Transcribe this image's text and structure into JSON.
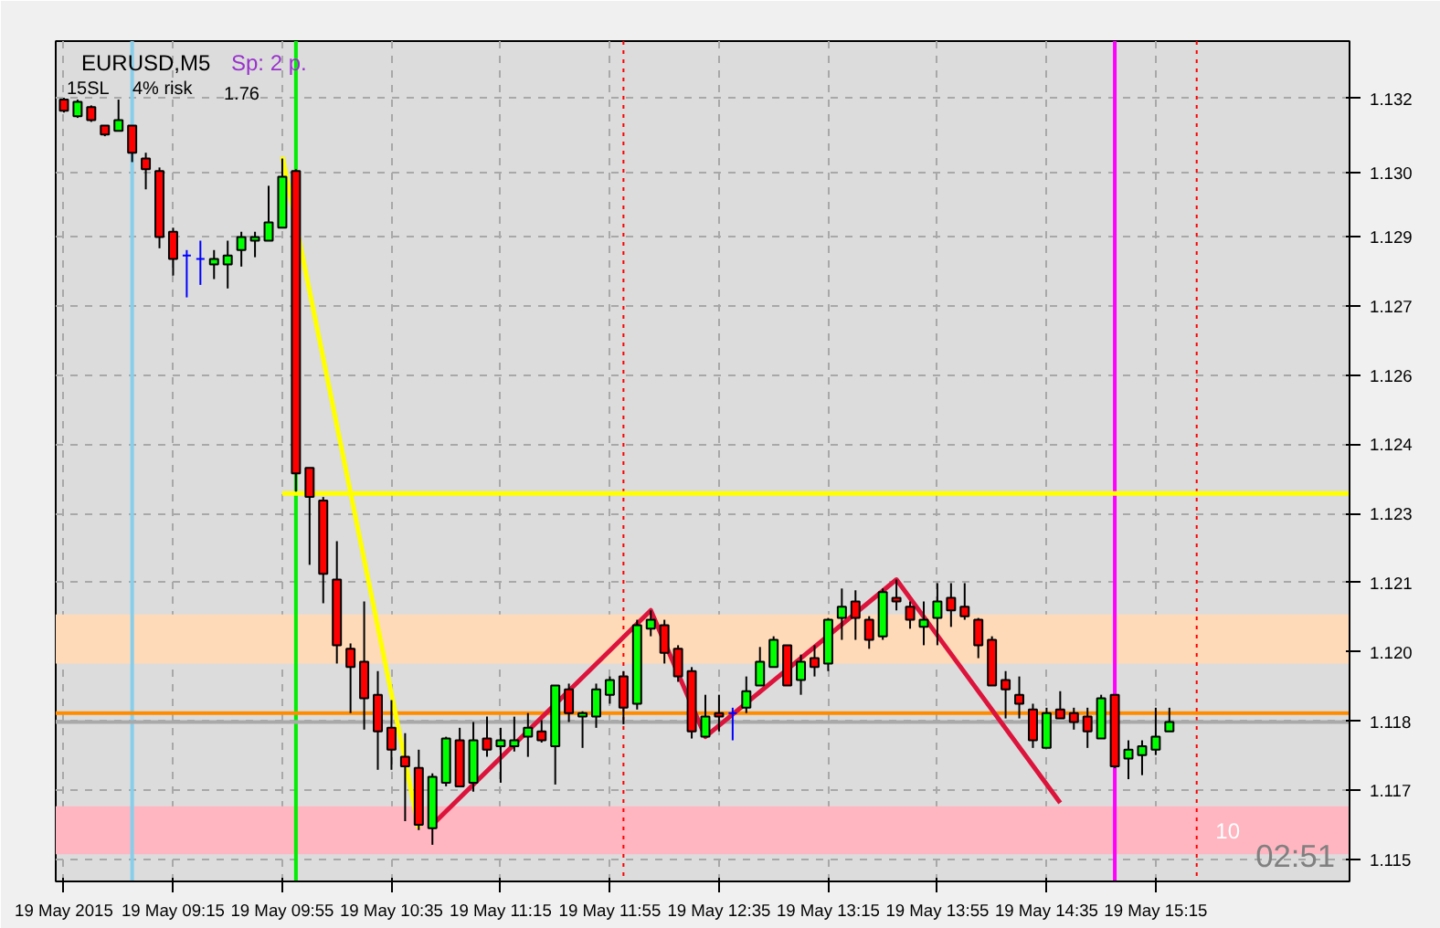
{
  "chart_data": {
    "type": "candlestick",
    "title": "EURUSD,M5",
    "x": [
      "2015-05-19T08:35",
      "2015-05-19T08:40",
      "2015-05-19T08:45",
      "2015-05-19T08:50",
      "2015-05-19T08:55",
      "2015-05-19T09:00",
      "2015-05-19T09:05",
      "2015-05-19T09:10",
      "2015-05-19T09:15",
      "2015-05-19T09:20",
      "2015-05-19T09:25",
      "2015-05-19T09:30",
      "2015-05-19T09:35",
      "2015-05-19T09:40",
      "2015-05-19T09:45",
      "2015-05-19T09:50",
      "2015-05-19T09:55",
      "2015-05-19T10:00",
      "2015-05-19T10:05",
      "2015-05-19T10:10",
      "2015-05-19T10:15",
      "2015-05-19T10:20",
      "2015-05-19T10:25",
      "2015-05-19T10:30",
      "2015-05-19T10:35",
      "2015-05-19T10:40",
      "2015-05-19T10:45",
      "2015-05-19T10:50",
      "2015-05-19T10:55",
      "2015-05-19T11:00",
      "2015-05-19T11:05",
      "2015-05-19T11:10",
      "2015-05-19T11:15",
      "2015-05-19T11:20",
      "2015-05-19T11:25",
      "2015-05-19T11:30",
      "2015-05-19T11:35",
      "2015-05-19T11:40",
      "2015-05-19T11:45",
      "2015-05-19T11:50",
      "2015-05-19T11:55",
      "2015-05-19T12:00",
      "2015-05-19T12:05",
      "2015-05-19T12:10",
      "2015-05-19T12:15",
      "2015-05-19T12:20",
      "2015-05-19T12:25",
      "2015-05-19T12:30",
      "2015-05-19T12:35",
      "2015-05-19T12:40",
      "2015-05-19T12:45",
      "2015-05-19T12:50",
      "2015-05-19T12:55",
      "2015-05-19T13:00",
      "2015-05-19T13:05",
      "2015-05-19T13:10",
      "2015-05-19T13:15",
      "2015-05-19T13:20",
      "2015-05-19T13:25",
      "2015-05-19T13:30",
      "2015-05-19T13:35",
      "2015-05-19T13:40",
      "2015-05-19T13:45",
      "2015-05-19T13:50",
      "2015-05-19T13:55",
      "2015-05-19T14:00",
      "2015-05-19T14:05",
      "2015-05-19T14:10",
      "2015-05-19T14:15",
      "2015-05-19T14:20",
      "2015-05-19T14:25",
      "2015-05-19T14:30",
      "2015-05-19T14:35",
      "2015-05-19T14:40",
      "2015-05-19T14:45",
      "2015-05-19T14:50",
      "2015-05-19T14:55",
      "2015-05-19T15:00",
      "2015-05-19T15:05",
      "2015-05-19T15:10",
      "2015-05-19T15:15",
      "2015-05-19T15:20"
    ],
    "ohlc": [
      [
        1.13212,
        1.13216,
        1.13183,
        1.13187
      ],
      [
        1.13175,
        1.13212,
        1.13171,
        1.13207
      ],
      [
        1.13195,
        1.13199,
        1.13162,
        1.13166
      ],
      [
        1.13154,
        1.13154,
        1.1313,
        1.13134
      ],
      [
        1.13142,
        1.13212,
        1.13142,
        1.13166
      ],
      [
        1.13154,
        1.13154,
        1.13072,
        1.13093
      ],
      [
        1.1308,
        1.13093,
        1.13011,
        1.13056
      ],
      [
        1.13052,
        1.1306,
        1.12879,
        1.12904
      ],
      [
        1.12916,
        1.12925,
        1.12818,
        1.12855
      ],
      [
        1.12863,
        1.12875,
        1.12769,
        1.12863
      ],
      [
        1.12855,
        1.12896,
        1.12797,
        1.12855
      ],
      [
        1.12843,
        1.12875,
        1.1281,
        1.12855
      ],
      [
        1.12843,
        1.12896,
        1.12789,
        1.12863
      ],
      [
        1.12875,
        1.12916,
        1.12838,
        1.12904
      ],
      [
        1.12896,
        1.12916,
        1.12859,
        1.12904
      ],
      [
        1.12896,
        1.13019,
        1.12896,
        1.12937
      ],
      [
        1.12925,
        1.1308,
        1.12925,
        1.13039
      ],
      [
        1.13052,
        1.13056,
        1.12334,
        1.12375
      ],
      [
        1.12387,
        1.12387,
        1.1217,
        1.12322
      ],
      [
        1.12314,
        1.12322,
        1.12084,
        1.1215
      ],
      [
        1.12137,
        1.12223,
        1.11949,
        1.1199
      ],
      [
        1.11982,
        1.11994,
        1.11838,
        1.11941
      ],
      [
        1.11953,
        1.12088,
        1.11801,
        1.11871
      ],
      [
        1.11879,
        1.11932,
        1.11711,
        1.11797
      ],
      [
        1.11805,
        1.11867,
        1.11711,
        1.11756
      ],
      [
        1.1174,
        1.11793,
        1.11596,
        1.11719
      ],
      [
        1.11715,
        1.11756,
        1.11576,
        1.11588
      ],
      [
        1.1158,
        1.11703,
        1.11543,
        1.11695
      ],
      [
        1.11682,
        1.11785,
        1.11674,
        1.11781
      ],
      [
        1.11777,
        1.11805,
        1.11674,
        1.11674
      ],
      [
        1.11682,
        1.11818,
        1.11662,
        1.11777
      ],
      [
        1.11781,
        1.1183,
        1.1174,
        1.11756
      ],
      [
        1.11764,
        1.11805,
        1.11682,
        1.11777
      ],
      [
        1.11764,
        1.1183,
        1.11752,
        1.11777
      ],
      [
        1.11785,
        1.11838,
        1.1174,
        1.11805
      ],
      [
        1.11797,
        1.11822,
        1.11772,
        1.11777
      ],
      [
        1.11764,
        1.119,
        1.11678,
        1.119
      ],
      [
        1.11891,
        1.11904,
        1.11818,
        1.11838
      ],
      [
        1.1183,
        1.11842,
        1.1176,
        1.11838
      ],
      [
        1.1183,
        1.11904,
        1.11805,
        1.11891
      ],
      [
        1.11879,
        1.1192,
        1.11859,
        1.11912
      ],
      [
        1.1192,
        1.11932,
        1.11813,
        1.1185
      ],
      [
        1.11859,
        1.12047,
        1.11846,
        1.12035
      ],
      [
        1.12027,
        1.12068,
        1.1201,
        1.12047
      ],
      [
        1.12035,
        1.12047,
        1.11949,
        1.11973
      ],
      [
        1.11982,
        1.1199,
        1.11908,
        1.1192
      ],
      [
        1.11932,
        1.11941,
        1.11781,
        1.11797
      ],
      [
        1.11785,
        1.11879,
        1.11785,
        1.1183
      ],
      [
        1.11838,
        1.11879,
        1.11797,
        1.1183
      ],
      [
        1.11838,
        1.1185,
        1.11777,
        1.11838
      ],
      [
        1.1185,
        1.1192,
        1.11838,
        1.11887
      ],
      [
        1.119,
        1.11986,
        1.119,
        1.11953
      ],
      [
        1.11941,
        1.1201,
        1.11941,
        1.12002
      ],
      [
        1.1199,
        1.1199,
        1.119,
        1.119
      ],
      [
        1.11912,
        1.11969,
        1.11879,
        1.11953
      ],
      [
        1.11961,
        1.1199,
        1.1192,
        1.11941
      ],
      [
        1.11949,
        1.12051,
        1.11932,
        1.12047
      ],
      [
        1.12051,
        1.12117,
        1.12002,
        1.12076
      ],
      [
        1.12088,
        1.12113,
        1.12002,
        1.12051
      ],
      [
        1.12047,
        1.12055,
        1.11982,
        1.12002
      ],
      [
        1.1201,
        1.12117,
        1.12002,
        1.12109
      ],
      [
        1.12096,
        1.12137,
        1.12068,
        1.12088
      ],
      [
        1.12076,
        1.12088,
        1.12027,
        1.12047
      ],
      [
        1.12031,
        1.12088,
        1.1199,
        1.12047
      ],
      [
        1.12051,
        1.12129,
        1.1199,
        1.12088
      ],
      [
        1.12096,
        1.12129,
        1.12031,
        1.12068
      ],
      [
        1.12076,
        1.12129,
        1.12047,
        1.12055
      ],
      [
        1.12047,
        1.12051,
        1.11961,
        1.1199
      ],
      [
        1.12002,
        1.1201,
        1.119,
        1.119
      ],
      [
        1.11912,
        1.11932,
        1.11826,
        1.11891
      ],
      [
        1.11879,
        1.1192,
        1.11826,
        1.11859
      ],
      [
        1.11846,
        1.11859,
        1.1176,
        1.11777
      ],
      [
        1.1176,
        1.1185,
        1.1176,
        1.11838
      ],
      [
        1.11846,
        1.11887,
        1.11826,
        1.11826
      ],
      [
        1.11838,
        1.1185,
        1.11801,
        1.11818
      ],
      [
        1.1183,
        1.1185,
        1.1176,
        1.11797
      ],
      [
        1.11781,
        1.11879,
        1.11781,
        1.11871
      ],
      [
        1.11879,
        1.11879,
        1.11715,
        1.11719
      ],
      [
        1.11736,
        1.11777,
        1.1169,
        1.11756
      ],
      [
        1.11744,
        1.11777,
        1.11699,
        1.11764
      ],
      [
        1.11756,
        1.1185,
        1.11744,
        1.11785
      ],
      [
        1.11797,
        1.1185,
        1.11797,
        1.11818
      ]
    ],
    "colors": [
      "#ff0000",
      "#00ff00",
      "#ff0000",
      "#ff0000",
      "#00ff00",
      "#ff0000",
      "#ff0000",
      "#ff0000",
      "#ff0000",
      "#0000ff",
      "#0000ff",
      "#00ff00",
      "#00ff00",
      "#00ff00",
      "#00ff00",
      "#00ff00",
      "#00ff00",
      "#ff0000",
      "#ff0000",
      "#ff0000",
      "#ff0000",
      "#ff0000",
      "#ff0000",
      "#ff0000",
      "#ff0000",
      "#ff0000",
      "#ff0000",
      "#00ff00",
      "#00ff00",
      "#ff0000",
      "#00ff00",
      "#ff0000",
      "#00ff00",
      "#00ff00",
      "#00ff00",
      "#ff0000",
      "#00ff00",
      "#ff0000",
      "#00ff00",
      "#00ff00",
      "#00ff00",
      "#ff0000",
      "#00ff00",
      "#00ff00",
      "#ff0000",
      "#ff0000",
      "#ff0000",
      "#00ff00",
      "#ff0000",
      "#0000ff",
      "#00ff00",
      "#00ff00",
      "#00ff00",
      "#ff0000",
      "#00ff00",
      "#ff0000",
      "#00ff00",
      "#00ff00",
      "#ff0000",
      "#ff0000",
      "#00ff00",
      "#ff0000",
      "#ff0000",
      "#00ff00",
      "#00ff00",
      "#ff0000",
      "#ff0000",
      "#ff0000",
      "#ff0000",
      "#ff0000",
      "#ff0000",
      "#ff0000",
      "#00ff00",
      "#ff0000",
      "#ff0000",
      "#ff0000",
      "#00ff00",
      "#ff0000",
      "#00ff00",
      "#00ff00",
      "#00ff00",
      "#00ff00"
    ],
    "series": [
      {
        "type": "line",
        "color": "#ffff00",
        "x": [
          "2015-05-19T09:55",
          "2015-05-19T10:45"
        ],
        "values": [
          1.13084,
          1.1158
        ]
      },
      {
        "type": "line",
        "color": "#ffff00",
        "x": [
          "2015-05-19T09:55",
          "2015-05-19T16:26"
        ],
        "values": [
          1.1233,
          1.1233
        ]
      },
      {
        "type": "line",
        "color": "#dc143c",
        "x": [
          "2015-05-19T10:50",
          "2015-05-19T12:10",
          "2015-05-19T12:30",
          "2015-05-19T13:40",
          "2015-05-19T14:40"
        ],
        "values": [
          1.11588,
          1.12068,
          1.11785,
          1.12137,
          1.11637
        ]
      }
    ],
    "ref_lines": [
      {
        "axis": "x",
        "value": "2015-05-19T09:00",
        "color": "#87ceeb"
      },
      {
        "axis": "x",
        "value": "2015-05-19T10:00",
        "color": "#00ee00"
      },
      {
        "axis": "x",
        "value": "2015-05-19T12:00",
        "color": "#ff0000",
        "line_style": "dotted"
      },
      {
        "axis": "x",
        "value": "2015-05-19T15:00",
        "color": "#ff00ff"
      },
      {
        "axis": "x",
        "value": "2015-05-19T15:30",
        "color": "#ff0000",
        "line_style": "dotted"
      },
      {
        "axis": "y",
        "value": 1.11838,
        "color": "#ff8c00"
      },
      {
        "axis": "y",
        "value": 1.11818,
        "color": "#a9a9a9"
      }
    ],
    "bands": [
      {
        "axis": "y",
        "from": 1.11949,
        "to": 1.12059,
        "color": "#ffdab9"
      },
      {
        "axis": "y",
        "from": 1.11522,
        "to": 1.11629,
        "color": "#ffb6c1",
        "label": "10"
      }
    ],
    "annotations": [
      "Sp: 2 p.",
      "15SL",
      "4% risk",
      "1.76",
      "02:51"
    ],
    "xlim": [
      "2015-05-19T08:32",
      "2015-05-19T16:26"
    ],
    "xticks": [
      {
        "value": "2015-05-19T08:35",
        "label": "19 May 2015"
      },
      {
        "value": "2015-05-19T09:15",
        "label": "19 May 09:15"
      },
      {
        "value": "2015-05-19T09:55",
        "label": "19 May 09:55"
      },
      {
        "value": "2015-05-19T10:35",
        "label": "19 May 10:35"
      },
      {
        "value": "2015-05-19T11:15",
        "label": "19 May 11:15"
      },
      {
        "value": "2015-05-19T11:55",
        "label": "19 May 11:55"
      },
      {
        "value": "2015-05-19T12:35",
        "label": "19 May 12:35"
      },
      {
        "value": "2015-05-19T13:15",
        "label": "19 May 13:15"
      },
      {
        "value": "2015-05-19T13:55",
        "label": "19 May 13:55"
      },
      {
        "value": "2015-05-19T14:35",
        "label": "19 May 14:35"
      },
      {
        "value": "2015-05-19T15:15",
        "label": "19 May 15:15"
      }
    ],
    "ylim": [
      1.11461,
      1.13343
    ],
    "yticks": [
      {
        "value": 1.1151,
        "label": "1.115"
      },
      {
        "value": 1.11665,
        "label": "1.117"
      },
      {
        "value": 1.1182,
        "label": "1.118"
      },
      {
        "value": 1.11975,
        "label": "1.120"
      },
      {
        "value": 1.1213,
        "label": "1.121"
      },
      {
        "value": 1.12285,
        "label": "1.123"
      },
      {
        "value": 1.1244,
        "label": "1.124"
      },
      {
        "value": 1.12595,
        "label": "1.126"
      },
      {
        "value": 1.1275,
        "label": "1.127"
      },
      {
        "value": 1.12905,
        "label": "1.129"
      },
      {
        "value": 1.13049,
        "label": "1.130"
      },
      {
        "value": 1.13215,
        "label": "1.132"
      }
    ],
    "grid": true
  }
}
